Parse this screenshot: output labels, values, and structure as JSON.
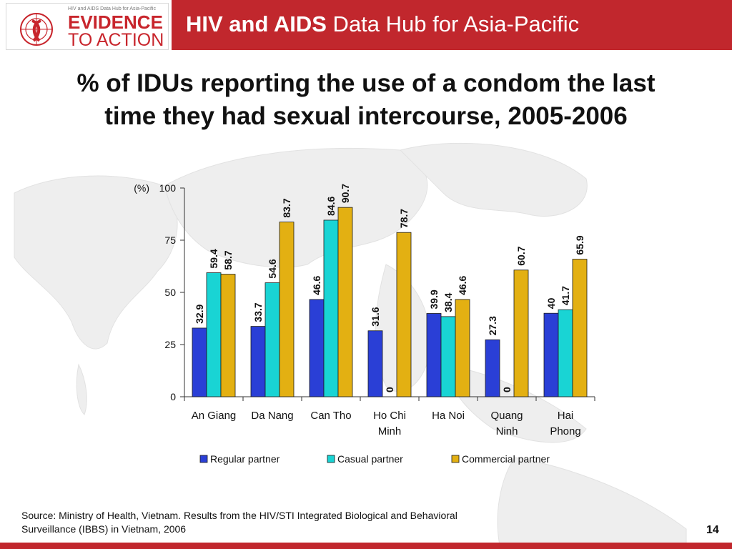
{
  "header": {
    "logo_tagline": "HIV and AIDS Data Hub for Asia-Pacific",
    "logo_line1": "EVIDENCE",
    "logo_line2": "TO ACTION",
    "title_bold": "HIV and AIDS",
    "title_rest": " Data Hub for Asia-Pacific"
  },
  "slide": {
    "title_line1": "% of IDUs reporting the use of a condom the last",
    "title_line2": "time they had sexual intercourse, 2005-2006"
  },
  "chart_data": {
    "type": "bar",
    "title": "",
    "ylabel": "(%)",
    "ylim": [
      0,
      100
    ],
    "yticks": [
      0,
      25,
      50,
      75,
      100
    ],
    "categories": [
      [
        "An Giang"
      ],
      [
        "Da Nang"
      ],
      [
        "Can Tho"
      ],
      [
        "Ho Chi",
        "Minh"
      ],
      [
        "Ha Noi"
      ],
      [
        "Quang",
        "Ninh"
      ],
      [
        "Hai",
        "Phong"
      ]
    ],
    "series": [
      {
        "name": "Regular partner",
        "color": "#2a3fd6",
        "values": [
          32.9,
          33.7,
          46.6,
          31.6,
          39.9,
          27.3,
          40
        ]
      },
      {
        "name": "Casual partner",
        "color": "#19d4d4",
        "values": [
          59.4,
          54.6,
          84.6,
          0,
          38.4,
          0,
          41.7
        ]
      },
      {
        "name": "Commercial partner",
        "color": "#e3b012",
        "values": [
          58.7,
          83.7,
          90.7,
          78.7,
          46.6,
          60.7,
          65.9
        ]
      }
    ],
    "data_labels": [
      [
        "32.9",
        "33.7",
        "46.6",
        "31.6",
        "39.9",
        "27.3",
        "40"
      ],
      [
        "59.4",
        "54.6",
        "84.6",
        "0",
        "38.4",
        "0",
        "41.7"
      ],
      [
        "58.7",
        "83.7",
        "90.7",
        "78.7",
        "46.6",
        "60.7",
        "65.9"
      ]
    ],
    "legend_position": "bottom",
    "grid": false
  },
  "footer": {
    "source": "Source: Ministry of Health, Vietnam. Results from the HIV/STI Integrated Biological and Behavioral Surveillance (IBBS) in Vietnam, 2006",
    "page_number": "14"
  }
}
